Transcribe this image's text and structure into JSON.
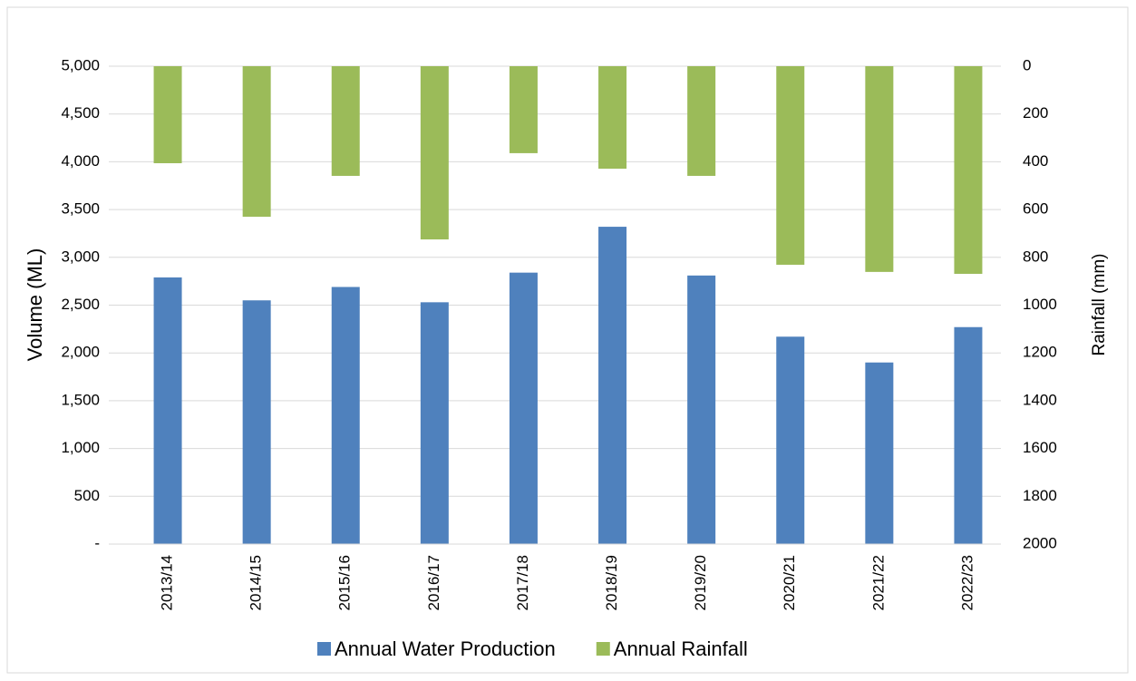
{
  "chart_data": {
    "type": "bar",
    "categories": [
      "2013/14",
      "2014/15",
      "2015/16",
      "2016/17",
      "2017/18",
      "2018/19",
      "2019/20",
      "2020/21",
      "2021/22",
      "2022/23"
    ],
    "series": [
      {
        "name": "Annual Water Production",
        "color": "#4f81bd",
        "values": [
          2790,
          2550,
          2690,
          2530,
          2840,
          3320,
          2810,
          2170,
          1900,
          2270
        ]
      },
      {
        "name": "Annual Rainfall",
        "color": "#9bbb59",
        "axis": "y2",
        "values": [
          406,
          630,
          459,
          725,
          364,
          429,
          459,
          831,
          861,
          869
        ]
      }
    ],
    "y_label": "Volume (ML)",
    "y2_label": "Rainfall (mm)",
    "ylim": [
      0,
      5000
    ],
    "yticks": [
      {
        "value": 0,
        "label": "-"
      },
      500,
      {
        "value": 1000,
        "label": "1,000"
      },
      {
        "value": 1500,
        "label": "1,500"
      },
      {
        "value": 2000,
        "label": "2,000"
      },
      {
        "value": 2500,
        "label": "2,500"
      },
      {
        "value": 3000,
        "label": "3,000"
      },
      {
        "value": 3500,
        "label": "3,500"
      },
      {
        "value": 4000,
        "label": "4,000"
      },
      {
        "value": 4500,
        "label": "4,500"
      },
      {
        "value": 5000,
        "label": "5,000"
      }
    ],
    "y2lim": [
      0,
      2000
    ],
    "y2_reversed": true,
    "y2ticks": [
      0,
      200,
      400,
      600,
      800,
      1000,
      1200,
      1400,
      1600,
      1800,
      2000
    ],
    "grid": true,
    "legend": "bottom"
  }
}
